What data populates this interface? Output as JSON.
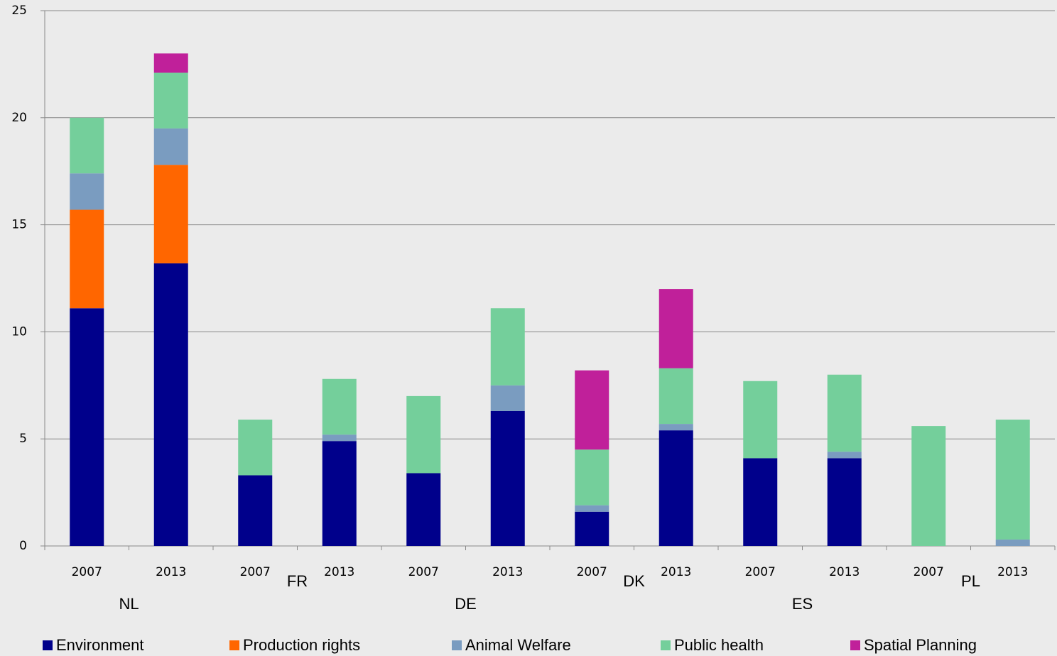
{
  "chart_data": {
    "type": "stacked_bar",
    "categories": [
      "2007",
      "2013",
      "2007",
      "2013",
      "2007",
      "2013",
      "2007",
      "2013",
      "2007",
      "2013",
      "2007",
      "2013"
    ],
    "groups": [
      "NL",
      "FR",
      "DE",
      "DK",
      "ES",
      "PL"
    ],
    "series": [
      {
        "name": "Environment",
        "color": "#00008B",
        "values": [
          11.1,
          13.2,
          3.3,
          4.9,
          3.4,
          6.3,
          1.6,
          5.4,
          4.1,
          4.1,
          0,
          0
        ]
      },
      {
        "name": "Production rights",
        "color": "#FF6600",
        "values": [
          4.6,
          4.6,
          0,
          0,
          0,
          0,
          0,
          0,
          0,
          0,
          0,
          0
        ]
      },
      {
        "name": "Animal Welfare",
        "color": "#7A9CC0",
        "values": [
          1.7,
          1.7,
          0,
          0.3,
          0,
          1.2,
          0.3,
          0.3,
          0,
          0.3,
          0,
          0.3
        ]
      },
      {
        "name": "Public health",
        "color": "#74CF9B",
        "values": [
          2.6,
          2.6,
          2.6,
          2.6,
          3.6,
          3.6,
          2.6,
          2.6,
          3.6,
          3.6,
          5.6,
          5.6
        ]
      },
      {
        "name": "Spatial Planning",
        "color": "#C0209A",
        "values": [
          0,
          0.9,
          0,
          0,
          0,
          0,
          3.7,
          3.7,
          0,
          0,
          0,
          0
        ]
      }
    ],
    "ylim": [
      0,
      25
    ],
    "yticks": [
      0,
      5,
      10,
      15,
      20,
      25
    ],
    "grid": true
  }
}
